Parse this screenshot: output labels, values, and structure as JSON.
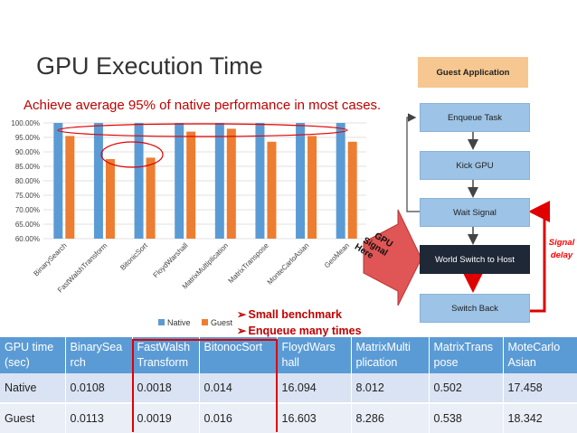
{
  "slide": {
    "title": "GPU Execution Time",
    "subtitle": "Achieve average 95% of native performance in most cases."
  },
  "chart_data": {
    "type": "bar",
    "categories": [
      "BinarySearch",
      "FastWalshTransform",
      "BitonicSort",
      "FloydWarshall",
      "MatrixMultiplication",
      "MatrixTranspose",
      "MonteCarloAsian",
      "GeoMean"
    ],
    "series": [
      {
        "name": "Native",
        "values": [
          100,
          100,
          100,
          100,
          100,
          100,
          100,
          100
        ],
        "color": "#5b9bd5"
      },
      {
        "name": "Guest",
        "values": [
          95.5,
          87.5,
          88.0,
          97.0,
          98.0,
          93.5,
          95.5,
          93.5
        ],
        "color": "#ed7d31"
      }
    ],
    "yticks": [
      "100.00%",
      "95.00%",
      "90.00%",
      "85.00%",
      "80.00%",
      "75.00%",
      "70.00%",
      "65.00%",
      "60.00%"
    ],
    "ylim": [
      60,
      100
    ],
    "legend": [
      "Native",
      "Guest"
    ],
    "legend_position": "bottom",
    "grid": true,
    "annotations": "red ellipses highlight the near-100% band and the low FastWalshTransform / BitonicSort guest bars"
  },
  "diagram": {
    "header": "Guest Application",
    "steps": [
      "Enqueue Task",
      "Kick GPU",
      "Wait Signal",
      "World Switch to Host",
      "Switch Back"
    ],
    "gpu_signal": [
      "GPU",
      "Signal",
      "Here"
    ],
    "signal_delay": [
      "Signal",
      "delay"
    ],
    "colors": {
      "box": "#9dc3e6",
      "dark": "#1f2837",
      "header": "#f6c790",
      "accent": "#e00000",
      "gpu_arrow": "#e05555"
    }
  },
  "bullets": [
    "Small benchmark",
    "Enqueue many times"
  ],
  "table": {
    "headers": [
      [
        "GPU time",
        "(sec)"
      ],
      [
        "BinarySea",
        "rch"
      ],
      [
        "FastWalsh",
        "Transform"
      ],
      [
        "BitonocSort",
        ""
      ],
      [
        "FloydWars",
        "hall"
      ],
      [
        "MatrixMulti",
        "plication"
      ],
      [
        "MatrixTrans",
        "pose"
      ],
      [
        "MoteCarlo",
        "Asian"
      ]
    ],
    "rows": [
      [
        "Native",
        "0.0108",
        "0.0018",
        "0.014",
        "16.094",
        "8.012",
        "0.502",
        "17.458"
      ],
      [
        "Guest",
        "0.0113",
        "0.0019",
        "0.016",
        "16.603",
        "8.286",
        "0.538",
        "18.342"
      ]
    ]
  }
}
